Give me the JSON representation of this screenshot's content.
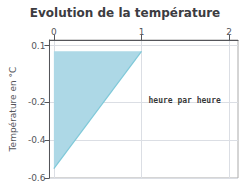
{
  "chart_data": {
    "type": "area",
    "title": "Evolution de la température",
    "ylabel": "Température en °C",
    "series": [
      {
        "type": "area",
        "x": [
          0,
          0,
          1
        ],
        "values": [
          0.07,
          -0.55,
          0.07
        ],
        "color": "#add8e6"
      },
      {
        "type": "line",
        "x": [
          0,
          1
        ],
        "values": [
          -0.55,
          0.07
        ],
        "color": "#7ec8d8"
      }
    ],
    "annotations": [
      {
        "text": "heure par heure",
        "x": 1.08,
        "y": -0.19
      }
    ],
    "xlim": [
      -0.05,
      2.1
    ],
    "xticks": [
      0,
      1,
      2
    ],
    "ylim": [
      -0.6,
      0.13
    ],
    "yticks": [
      0.1,
      -0.2,
      -0.4,
      -0.6
    ],
    "grid": true
  }
}
